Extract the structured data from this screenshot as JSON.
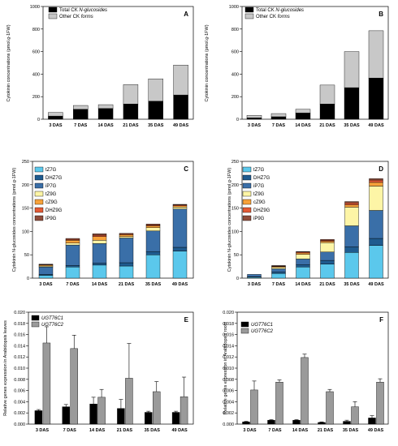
{
  "chart_data": [
    {
      "id": "A",
      "panel_label": "A",
      "type": "bar",
      "stacked": true,
      "categories": [
        "3 DAS",
        "7 DAS",
        "14 DAS",
        "21 DAS",
        "35 DAS",
        "49 DAS"
      ],
      "series": [
        {
          "name": "Total CK N-glucosides",
          "color": "#000000",
          "values": [
            28,
            88,
            95,
            135,
            160,
            215
          ]
        },
        {
          "name": "Other CK forms",
          "color": "#c8c8c8",
          "values": [
            32,
            34,
            34,
            172,
            198,
            265
          ]
        }
      ],
      "ylabel": "Cytokinin concentrations (pmol.g-1FW)",
      "ylim": [
        0,
        1000
      ],
      "yticks": [
        0,
        200,
        400,
        600,
        800,
        1000
      ],
      "legend": "top-left"
    },
    {
      "id": "B",
      "panel_label": "B",
      "type": "bar",
      "stacked": true,
      "categories": [
        "3 DAS",
        "7 DAS",
        "14 DAS",
        "21 DAS",
        "35 DAS",
        "49 DAS"
      ],
      "series": [
        {
          "name": "Total CK N-glucosides",
          "color": "#000000",
          "values": [
            12,
            22,
            55,
            135,
            280,
            365
          ]
        },
        {
          "name": "Other CK forms",
          "color": "#c8c8c8",
          "values": [
            22,
            28,
            33,
            168,
            320,
            420
          ]
        }
      ],
      "ylabel": "Cytokinin concentrations (pmol.g-1FW)",
      "ylim": [
        0,
        1000
      ],
      "yticks": [
        0,
        200,
        400,
        600,
        800,
        1000
      ],
      "legend": "top-left"
    },
    {
      "id": "C",
      "panel_label": "C",
      "type": "bar",
      "stacked": true,
      "categories": [
        "3 DAS",
        "7 DAS",
        "14 DAS",
        "21 DAS",
        "35 DAS",
        "49 DAS"
      ],
      "series": [
        {
          "name": "tZ7G",
          "color": "#5bc8ec",
          "values": [
            6,
            24,
            28,
            26,
            50,
            58
          ]
        },
        {
          "name": "DHZ7G",
          "color": "#1f5b8f",
          "values": [
            2,
            3,
            4,
            7,
            7,
            8
          ]
        },
        {
          "name": "iP7G",
          "color": "#3a6fa8",
          "values": [
            16,
            44,
            42,
            53,
            44,
            82
          ]
        },
        {
          "name": "tZ9G",
          "color": "#fdf5a6",
          "values": [
            2,
            4,
            7,
            3,
            7,
            4
          ]
        },
        {
          "name": "cZ9G",
          "color": "#f7a23a",
          "values": [
            2,
            6,
            8,
            4,
            4,
            3
          ]
        },
        {
          "name": "DHZ9G",
          "color": "#e35a35",
          "values": [
            1,
            2,
            3,
            2,
            2,
            2
          ]
        },
        {
          "name": "iP9G",
          "color": "#8f4c3a",
          "values": [
            1,
            2,
            3,
            1,
            2,
            1
          ]
        }
      ],
      "ylabel": "Cytokinin N-glucosides concentrations (pmol.g-1FW)",
      "ylim": [
        0,
        250
      ],
      "yticks": [
        0,
        50,
        100,
        150,
        200,
        250
      ],
      "legend": "top-left"
    },
    {
      "id": "D",
      "panel_label": "D",
      "type": "bar",
      "stacked": true,
      "categories": [
        "3 DAS",
        "7 DAS",
        "14 DAS",
        "21 DAS",
        "35 DAS",
        "49 DAS"
      ],
      "series": [
        {
          "name": "tZ7G",
          "color": "#5bc8ec",
          "values": [
            2,
            10,
            24,
            30,
            55,
            70
          ]
        },
        {
          "name": "DHZ7G",
          "color": "#1f5b8f",
          "values": [
            1,
            3,
            5,
            8,
            12,
            15
          ]
        },
        {
          "name": "iP7G",
          "color": "#3a6fa8",
          "values": [
            5,
            7,
            12,
            18,
            45,
            60
          ]
        },
        {
          "name": "tZ9G",
          "color": "#fdf5a6",
          "values": [
            0,
            3,
            10,
            20,
            40,
            52
          ]
        },
        {
          "name": "cZ9G",
          "color": "#f7a23a",
          "values": [
            0,
            2,
            3,
            3,
            5,
            8
          ]
        },
        {
          "name": "DHZ9G",
          "color": "#e35a35",
          "values": [
            0,
            1,
            2,
            2,
            4,
            5
          ]
        },
        {
          "name": "iP9G",
          "color": "#8f4c3a",
          "values": [
            0,
            1,
            1,
            2,
            3,
            3
          ]
        }
      ],
      "ylabel": "Cytokinin N-glucosides concentrations (pmol.g-1FW)",
      "ylim": [
        0,
        250
      ],
      "yticks": [
        0,
        50,
        100,
        150,
        200,
        250
      ],
      "legend": "top-left"
    },
    {
      "id": "E",
      "panel_label": "E",
      "type": "bar",
      "stacked": false,
      "categories": [
        "3 DAS",
        "7 DAS",
        "14 DAS",
        "21 DAS",
        "35 DAS",
        "49 DAS"
      ],
      "series": [
        {
          "name": "UGT76C1",
          "color": "#000000",
          "values": [
            0.0024,
            0.0031,
            0.0036,
            0.0028,
            0.0021,
            0.0021
          ],
          "errors": [
            0.0002,
            0.0004,
            0.0012,
            0.0016,
            0.0002,
            0.0002
          ]
        },
        {
          "name": "UGT76C2",
          "color": "#9a9a9a",
          "values": [
            0.0145,
            0.0135,
            0.0048,
            0.0082,
            0.0058,
            0.0049
          ],
          "errors": [
            0.0029,
            0.0024,
            0.0014,
            0.0062,
            0.0018,
            0.0035
          ]
        }
      ],
      "ylabel": "Relative genes expression in Arabidopsis leaves",
      "ylim": [
        0,
        0.02
      ],
      "yticks": [
        "0.000",
        "0.002",
        "0.004",
        "0.006",
        "0.008",
        "0.010",
        "0.012",
        "0.014",
        "0.016",
        "0.018",
        "0.020"
      ],
      "legend": "top-left"
    },
    {
      "id": "F",
      "panel_label": "F",
      "type": "bar",
      "stacked": false,
      "categories": [
        "3 DAS",
        "7 DAS",
        "14 DAS",
        "21 DAS",
        "35 DAS",
        "49 DAS"
      ],
      "series": [
        {
          "name": "UGT76C1",
          "color": "#000000",
          "values": [
            0.0004,
            0.0007,
            0.0007,
            0.0003,
            0.0005,
            0.0011
          ],
          "errors": [
            0.0001,
            0.0001,
            0.0001,
            0.0001,
            0.0002,
            0.0004
          ]
        },
        {
          "name": "UGT76C2",
          "color": "#9a9a9a",
          "values": [
            0.0061,
            0.0075,
            0.0119,
            0.0058,
            0.0031,
            0.0075
          ],
          "errors": [
            0.0016,
            0.0004,
            0.0006,
            0.0004,
            0.0009,
            0.0006
          ]
        }
      ],
      "ylabel": "Relative genes expression in Arabidopsis roots",
      "ylim": [
        0,
        0.02
      ],
      "yticks": [
        "0.000",
        "0.002",
        "0.004",
        "0.006",
        "0.008",
        "0.010",
        "0.012",
        "0.014",
        "0.016",
        "0.018",
        "0.020"
      ],
      "legend": "top-left"
    }
  ]
}
